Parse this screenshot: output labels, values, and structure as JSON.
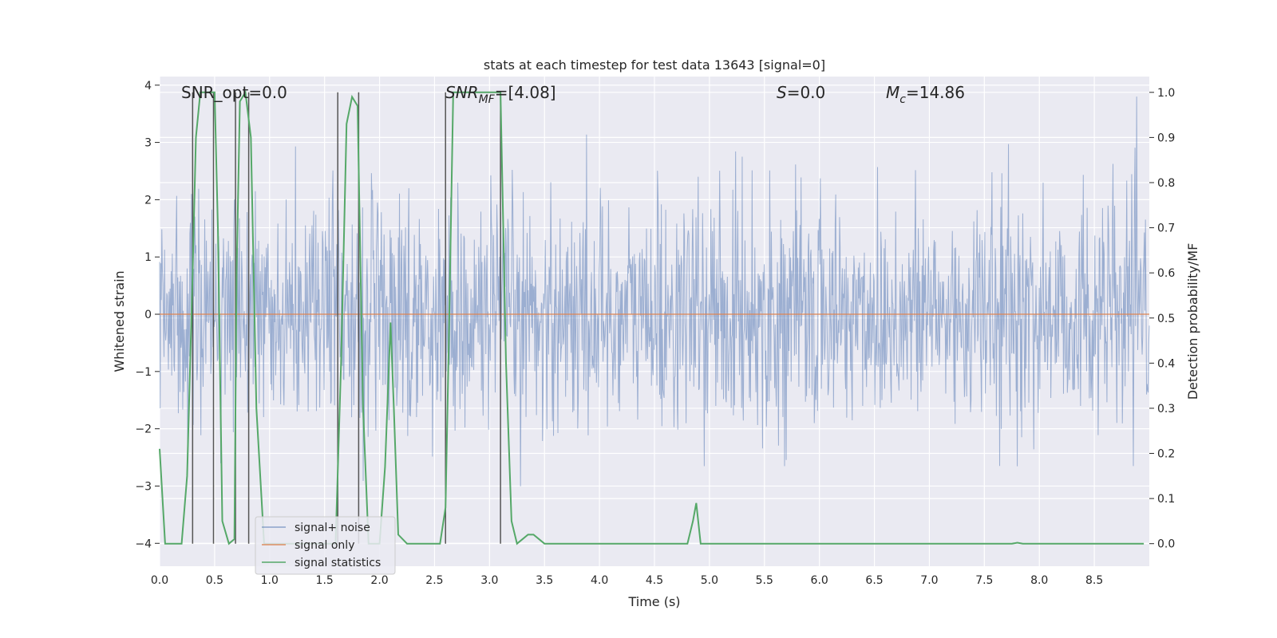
{
  "chart_data": {
    "type": "line",
    "title": "stats at each timestep for test data 13643 [signal=0]",
    "xlabel": "Time (s)",
    "ylabel": "Whitened strain",
    "y2label": "Detection probability/MF",
    "xlim": [
      0,
      9
    ],
    "ylim": [
      -4.4,
      4.15
    ],
    "y2lim": [
      -0.05,
      1.035
    ],
    "xticks": [
      "0.0",
      "0.5",
      "1.0",
      "1.5",
      "2.0",
      "2.5",
      "3.0",
      "3.5",
      "4.0",
      "4.5",
      "5.0",
      "5.5",
      "6.0",
      "6.5",
      "7.0",
      "7.5",
      "8.0",
      "8.5"
    ],
    "yticks": [
      "4",
      "3",
      "2",
      "1",
      "0",
      "−1",
      "−2",
      "−3",
      "−4"
    ],
    "y2ticks": [
      "1.0",
      "0.9",
      "0.8",
      "0.7",
      "0.6",
      "0.5",
      "0.4",
      "0.3",
      "0.2",
      "0.1",
      "0.0"
    ],
    "annotations": {
      "snr_opt": "SNR_opt=0.0",
      "snr_mf_main": "SNR",
      "snr_mf_sub": "MF",
      "snr_mf_value": "=[4.08]",
      "s_main": "S",
      "s_value": "=0.0",
      "mc_main": "M",
      "mc_sub": "c",
      "mc_value": "=14.86"
    },
    "legend": {
      "position": "lower-left",
      "entries": [
        {
          "label": "signal+ noise",
          "color": "#4c72b0"
        },
        {
          "label": "signal only",
          "color": "#dd8452"
        },
        {
          "label": "signal statistics",
          "color": "#55a868"
        }
      ]
    },
    "series": [
      {
        "name": "signal+ noise",
        "color": "#4c72b0",
        "axis": "left",
        "description": "dense whitened strain noise, roughly Gaussian with std ~1, spanning about -3.8 to 3.8",
        "std": 1.0,
        "range": [
          -3.8,
          3.8
        ]
      },
      {
        "name": "signal only",
        "color": "#dd8452",
        "axis": "left",
        "x": [
          0,
          9
        ],
        "y": [
          0,
          0
        ]
      },
      {
        "name": "signal statistics",
        "color": "#55a868",
        "axis": "right",
        "x": [
          0.0,
          0.05,
          0.1,
          0.2,
          0.25,
          0.3,
          0.33,
          0.37,
          0.4,
          0.45,
          0.5,
          0.53,
          0.57,
          0.63,
          0.68,
          0.7,
          0.73,
          0.78,
          0.83,
          0.88,
          0.95,
          1.0,
          1.1,
          1.2,
          1.3,
          1.45,
          1.6,
          1.65,
          1.7,
          1.75,
          1.8,
          1.85,
          1.9,
          1.95,
          2.0,
          2.05,
          2.1,
          2.13,
          2.17,
          2.25,
          2.35,
          2.45,
          2.55,
          2.6,
          2.63,
          2.67,
          2.7,
          2.8,
          2.9,
          3.0,
          3.1,
          3.15,
          3.2,
          3.25,
          3.3,
          3.35,
          3.4,
          3.5,
          3.6,
          4.0,
          4.5,
          4.75,
          4.8,
          4.85,
          4.88,
          4.92,
          5.0,
          5.5,
          6.0,
          6.5,
          7.0,
          7.5,
          7.75,
          7.8,
          7.85,
          8.0,
          8.5,
          8.95
        ],
        "y": [
          0.21,
          0.0,
          0.0,
          0.0,
          0.15,
          0.6,
          0.9,
          1.0,
          1.0,
          1.0,
          1.0,
          0.7,
          0.05,
          0.0,
          0.01,
          0.6,
          0.98,
          1.0,
          0.9,
          0.3,
          0.0,
          0.0,
          0.0,
          0.0,
          0.0,
          0.0,
          0.0,
          0.4,
          0.93,
          0.99,
          0.97,
          0.3,
          0.0,
          0.0,
          0.0,
          0.17,
          0.49,
          0.3,
          0.02,
          0.0,
          0.0,
          0.0,
          0.0,
          0.08,
          0.45,
          1.0,
          1.0,
          1.0,
          1.0,
          1.0,
          1.0,
          0.4,
          0.05,
          0.0,
          0.01,
          0.02,
          0.02,
          0.0,
          0.0,
          0.0,
          0.0,
          0.0,
          0.0,
          0.05,
          0.09,
          0.0,
          0.0,
          0.0,
          0.0,
          0.0,
          0.0,
          0.0,
          0.0,
          0.002,
          0.0,
          0.0,
          0.0,
          0.0
        ]
      }
    ],
    "vertical_lines_x": [
      0.3,
      0.49,
      0.69,
      0.81,
      1.62,
      1.81,
      2.6,
      3.1
    ],
    "grid": true,
    "background": "#eaeaf2"
  }
}
